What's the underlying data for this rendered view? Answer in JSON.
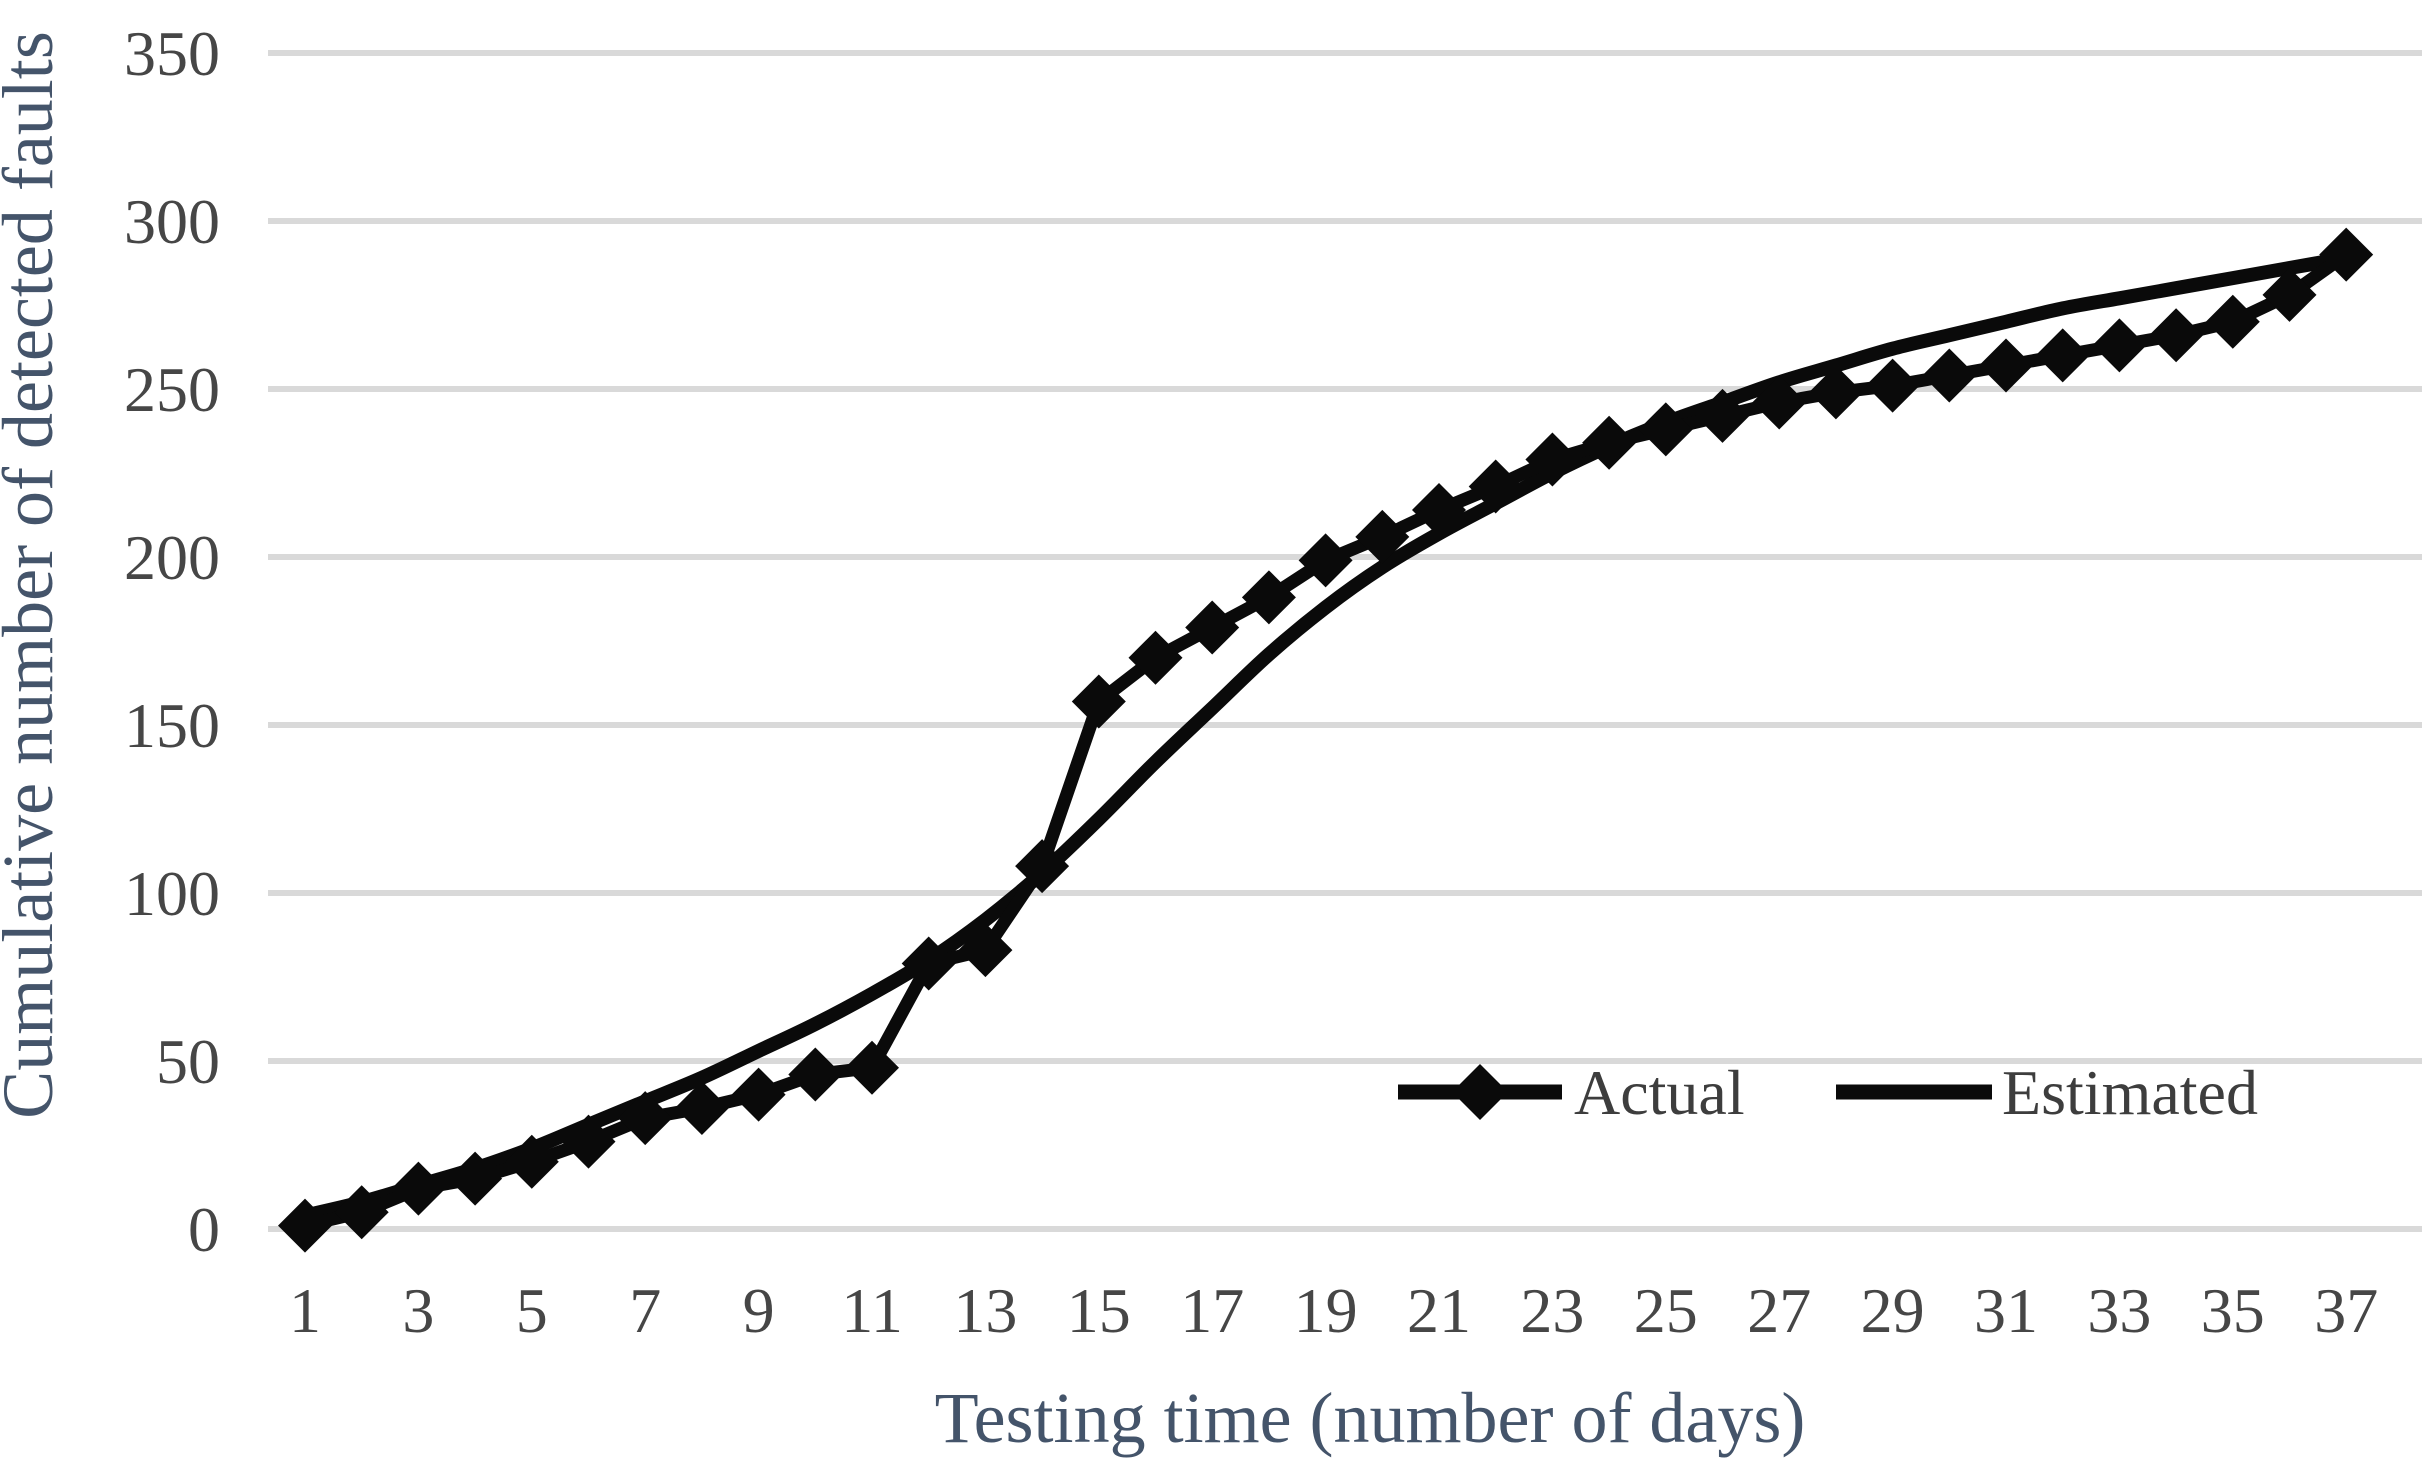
{
  "chart_data": {
    "type": "line",
    "title": "",
    "xlabel": "Testing time (number of days)",
    "ylabel": "Cumulative number of detected faults",
    "xlim": [
      1,
      37
    ],
    "ylim": [
      0,
      350
    ],
    "grid": "horizontal",
    "legend_position": "inside-bottom-right",
    "x": [
      1,
      2,
      3,
      4,
      5,
      6,
      7,
      8,
      9,
      10,
      11,
      12,
      13,
      14,
      15,
      16,
      17,
      18,
      19,
      20,
      21,
      22,
      23,
      24,
      25,
      26,
      27,
      28,
      29,
      30,
      31,
      32,
      33,
      34,
      35,
      36,
      37
    ],
    "x_tick_labels": [
      1,
      3,
      5,
      7,
      9,
      11,
      13,
      15,
      17,
      19,
      21,
      23,
      25,
      27,
      29,
      31,
      33,
      35,
      37
    ],
    "y_ticks": [
      0,
      50,
      100,
      150,
      200,
      250,
      300,
      350
    ],
    "series": [
      {
        "name": "Actual",
        "marker": "diamond",
        "color": "#0a0a0a",
        "values": [
          1,
          5,
          12,
          15,
          20,
          26,
          33,
          36,
          40,
          46,
          48,
          79,
          83,
          108,
          157,
          170,
          179,
          188,
          199,
          206,
          214,
          221,
          229,
          234,
          238,
          242,
          246,
          249,
          251,
          254,
          257,
          260,
          263,
          266,
          270,
          278,
          290
        ]
      },
      {
        "name": "Estimated",
        "marker": "none",
        "color": "#0a0a0a",
        "values": [
          4,
          8,
          13,
          18,
          24,
          31,
          38,
          45,
          53,
          61,
          70,
          80,
          92,
          106,
          122,
          139,
          155,
          171,
          185,
          197,
          207,
          216,
          225,
          233,
          240,
          246,
          252,
          257,
          262,
          266,
          270,
          274,
          277,
          280,
          283,
          286,
          289
        ]
      }
    ],
    "colors": {
      "series": "#0a0a0a",
      "gridline": "#d9d9d9",
      "tick_label": "#464646",
      "axis_title": "#44546a",
      "legend_text": "#3d3d3d",
      "background": "#ffffff"
    }
  }
}
